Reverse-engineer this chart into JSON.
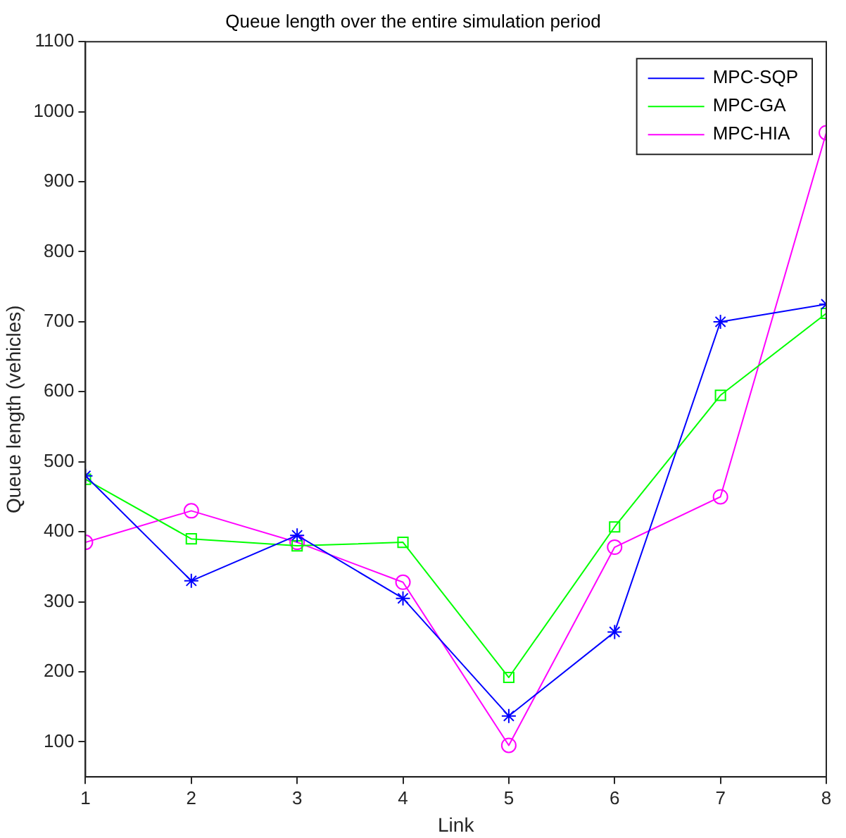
{
  "chart_data": {
    "type": "line",
    "title": "Queue length over the entire simulation period",
    "xlabel": "Link",
    "ylabel": "Queue length (vehicles)",
    "x": [
      1,
      2,
      3,
      4,
      5,
      6,
      7,
      8
    ],
    "xlim": [
      1,
      8
    ],
    "xticks": [
      1,
      2,
      3,
      4,
      5,
      6,
      7,
      8
    ],
    "ylim": [
      50,
      1100
    ],
    "yticks": [
      100,
      200,
      300,
      400,
      500,
      600,
      700,
      800,
      900,
      1000,
      1100
    ],
    "grid": false,
    "legend": "top right",
    "line_style": "solid",
    "series": [
      {
        "name": "MPC-SQP",
        "color": "#0000ff",
        "marker": "cross",
        "values": [
          480,
          330,
          395,
          305,
          137,
          257,
          700,
          725
        ]
      },
      {
        "name": "MPC-GA",
        "color": "#00ff00",
        "marker": "square",
        "values": [
          475,
          390,
          380,
          385,
          192,
          407,
          595,
          712
        ]
      },
      {
        "name": "MPC-HIA",
        "color": "#ff00ff",
        "marker": "circle",
        "values": [
          385,
          430,
          385,
          328,
          95,
          378,
          450,
          970
        ]
      }
    ]
  }
}
